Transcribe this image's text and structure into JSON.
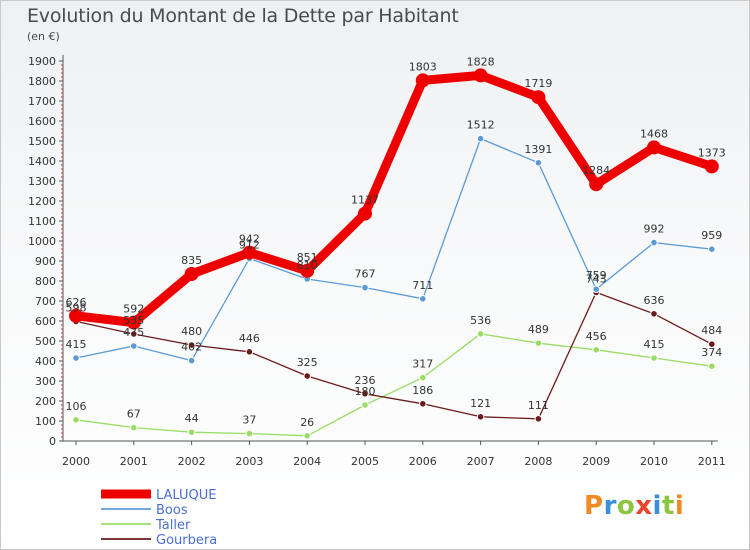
{
  "title": "Evolution du Montant de la Dette par Habitant",
  "subtitle": "(en €)",
  "brand": {
    "logo_text": "Proxiti"
  },
  "chart_data": {
    "type": "line",
    "title": "Evolution du Montant de la Dette par Habitant",
    "ylabel": "(en €)",
    "xlabel": "",
    "ylim": [
      0,
      1900
    ],
    "yticks": [
      0,
      100,
      200,
      300,
      400,
      500,
      600,
      700,
      800,
      900,
      1000,
      1100,
      1200,
      1300,
      1400,
      1500,
      1600,
      1700,
      1800,
      1900
    ],
    "grid": false,
    "legend": "bottom-left",
    "categories": [
      "2000",
      "2001",
      "2002",
      "2003",
      "2004",
      "2005",
      "2006",
      "2007",
      "2008",
      "2009",
      "2010",
      "2011"
    ],
    "series": [
      {
        "name": "LALUQUE",
        "color": "#ee0000",
        "values": [
          626,
          592,
          835,
          942,
          851,
          1137,
          1803,
          1828,
          1719,
          1284,
          1468,
          1373
        ]
      },
      {
        "name": "Boos",
        "color": "#5b9bd5",
        "values": [
          415,
          475,
          402,
          912,
          810,
          767,
          711,
          1512,
          1391,
          759,
          992,
          959
        ]
      },
      {
        "name": "Taller",
        "color": "#99dd66",
        "values": [
          106,
          67,
          44,
          37,
          26,
          180,
          317,
          536,
          489,
          456,
          415,
          374
        ]
      },
      {
        "name": "Gourbera",
        "color": "#6b1a1a",
        "values": [
          598,
          535,
          480,
          446,
          325,
          236,
          186,
          121,
          111,
          743,
          636,
          484
        ]
      }
    ]
  }
}
